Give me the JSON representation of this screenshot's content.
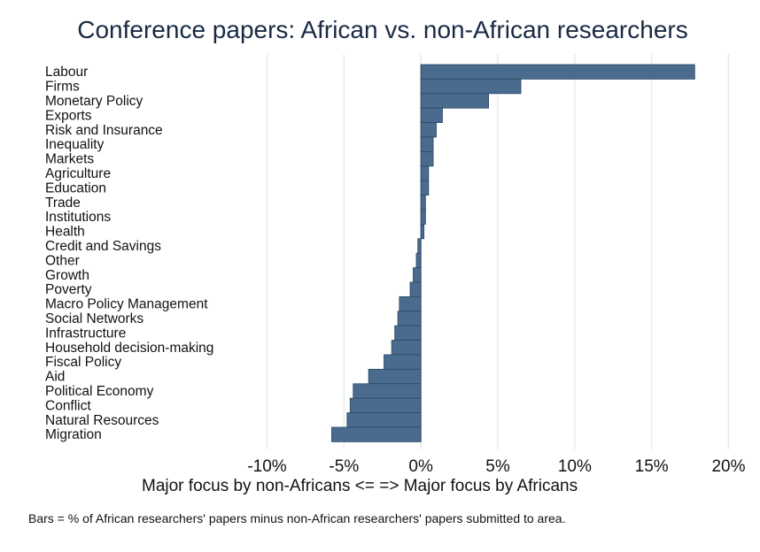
{
  "chart_data": {
    "type": "bar",
    "orientation": "horizontal",
    "title": "Conference papers: African vs. non-African researchers",
    "xlabel": "Major focus by non-Africans  <=     =>  Major focus by Africans",
    "ylabel": "",
    "note": "Bars = % of African researchers' papers minus non-African researchers' papers submitted to area.",
    "xlim": [
      -10,
      20
    ],
    "xticks": [
      -10,
      -5,
      0,
      5,
      10,
      15,
      20
    ],
    "xtick_labels": [
      "-10%",
      "-5%",
      "0%",
      "5%",
      "10%",
      "15%",
      "20%"
    ],
    "grid": true,
    "bar_color": "#4a6b8e",
    "categories": [
      "Labour",
      "Firms",
      "Monetary Policy",
      "Exports",
      "Risk and Insurance",
      "Inequality",
      "Markets",
      "Agriculture",
      "Education",
      "Trade",
      "Institutions",
      "Health",
      "Credit and Savings",
      "Other",
      "Growth",
      "Poverty",
      "Macro Policy Management",
      "Social Networks",
      "Infrastructure",
      "Household decision-making",
      "Fiscal Policy",
      "Aid",
      "Political Economy",
      "Conflict",
      "Natural Resources",
      "Migration"
    ],
    "values": [
      17.8,
      6.5,
      4.4,
      1.4,
      1.0,
      0.8,
      0.8,
      0.5,
      0.5,
      0.3,
      0.3,
      0.2,
      -0.2,
      -0.3,
      -0.5,
      -0.7,
      -1.4,
      -1.5,
      -1.7,
      -1.9,
      -2.4,
      -3.4,
      -4.4,
      -4.6,
      -4.8,
      -5.8
    ]
  }
}
